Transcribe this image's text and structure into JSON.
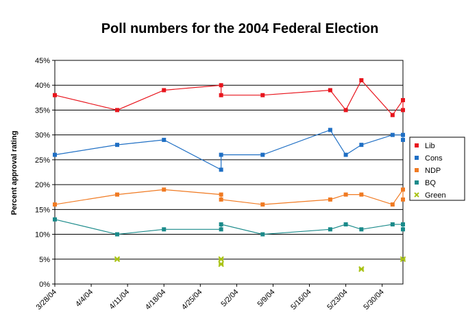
{
  "chart_data": {
    "type": "line",
    "title": "Poll numbers for the 2004 Federal Election",
    "y_label": "Percent approval rating",
    "xlim": [
      "3/28/04",
      "6/3/04"
    ],
    "xticks": [
      "3/28/04",
      "4/4/04",
      "4/11/04",
      "4/18/04",
      "4/25/04",
      "5/2/04",
      "5/9/04",
      "5/16/04",
      "5/23/04",
      "5/30/04"
    ],
    "ylim": [
      0,
      45
    ],
    "yticks": [
      {
        "value": 0,
        "label": "0%"
      },
      {
        "value": 5,
        "label": "5%"
      },
      {
        "value": 10,
        "label": "10%"
      },
      {
        "value": 15,
        "label": "15%"
      },
      {
        "value": 20,
        "label": "20%"
      },
      {
        "value": 25,
        "label": "25%"
      },
      {
        "value": 30,
        "label": "30%"
      },
      {
        "value": 35,
        "label": "35%"
      },
      {
        "value": 40,
        "label": "40%"
      },
      {
        "value": 45,
        "label": "45%"
      }
    ],
    "grid": true,
    "legend": "right",
    "series": [
      {
        "name": "Lib",
        "color": "#e8141c",
        "marker": "square",
        "show_line": true,
        "x": [
          "3/28/04",
          "4/9/04",
          "4/18/04",
          "4/29/04",
          "4/29/04",
          "5/7/04",
          "5/20/04",
          "5/23/04",
          "5/26/04",
          "6/1/04",
          "6/3/04",
          "6/3/04"
        ],
        "values": [
          38,
          35,
          39,
          40,
          38,
          38,
          39,
          35,
          41,
          34,
          37,
          35
        ]
      },
      {
        "name": "Cons",
        "color": "#1f6fc4",
        "marker": "square",
        "show_line": true,
        "x": [
          "3/28/04",
          "4/9/04",
          "4/18/04",
          "4/29/04",
          "4/29/04",
          "5/7/04",
          "5/20/04",
          "5/23/04",
          "5/26/04",
          "6/1/04",
          "6/3/04",
          "6/3/04"
        ],
        "values": [
          26,
          28,
          29,
          23,
          26,
          26,
          31,
          26,
          28,
          30,
          30,
          29
        ]
      },
      {
        "name": "NDP",
        "color": "#f07a22",
        "marker": "square",
        "show_line": true,
        "x": [
          "3/28/04",
          "4/9/04",
          "4/18/04",
          "4/29/04",
          "4/29/04",
          "5/7/04",
          "5/20/04",
          "5/23/04",
          "5/26/04",
          "6/1/04",
          "6/3/04",
          "6/3/04"
        ],
        "values": [
          16,
          18,
          19,
          18,
          17,
          16,
          17,
          18,
          18,
          16,
          19,
          17
        ]
      },
      {
        "name": "BQ",
        "color": "#1a8a8a",
        "marker": "square",
        "show_line": true,
        "x": [
          "3/28/04",
          "4/9/04",
          "4/18/04",
          "4/29/04",
          "4/29/04",
          "5/7/04",
          "5/20/04",
          "5/23/04",
          "5/26/04",
          "6/1/04",
          "6/3/04",
          "6/3/04"
        ],
        "values": [
          13,
          10,
          11,
          11,
          12,
          10,
          11,
          12,
          11,
          12,
          12,
          11
        ]
      },
      {
        "name": "Green",
        "color": "#a8c214",
        "marker": "cross",
        "show_line": false,
        "x": [
          "4/9/04",
          "4/29/04",
          "4/29/04",
          "5/26/04",
          "6/3/04"
        ],
        "values": [
          5,
          5,
          4,
          3,
          5
        ]
      }
    ]
  }
}
